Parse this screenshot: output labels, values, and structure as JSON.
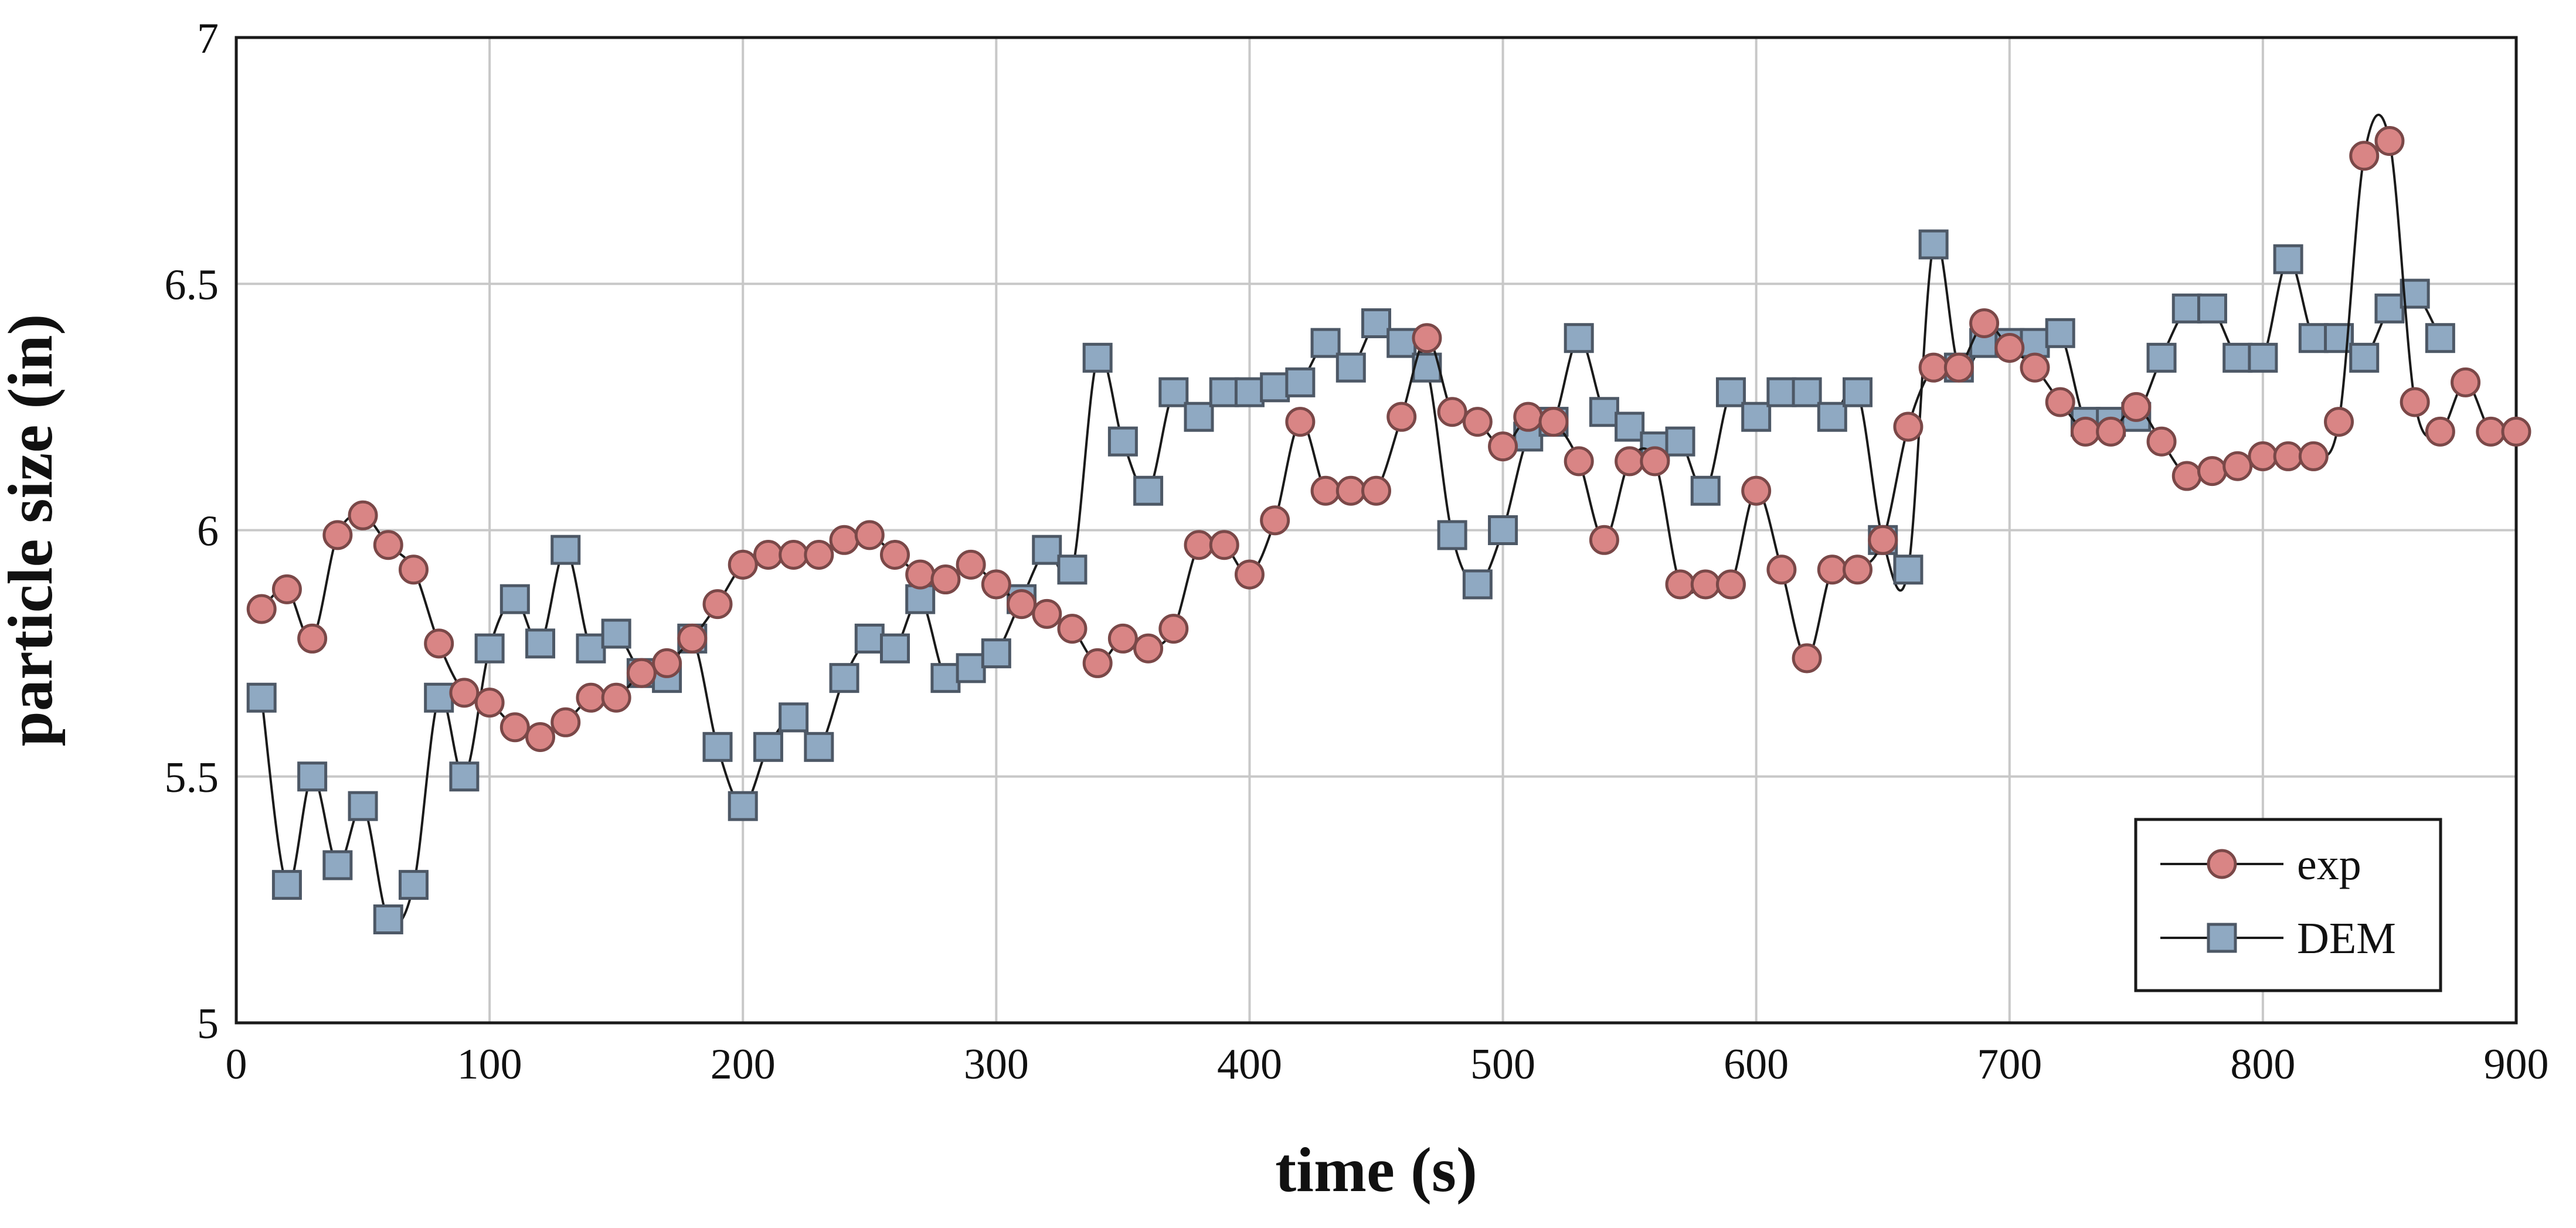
{
  "chart_data": {
    "type": "line",
    "xlabel": "time (s)",
    "ylabel": "particle size (in)",
    "xlim": [
      0,
      900
    ],
    "ylim": [
      5,
      7
    ],
    "xticks": [
      0,
      100,
      200,
      300,
      400,
      500,
      600,
      700,
      800,
      900
    ],
    "xtick_labels": [
      "0",
      "100",
      "200",
      "300",
      "400",
      "500",
      "600",
      "700",
      "800",
      "900"
    ],
    "yticks": [
      5,
      5.5,
      6,
      6.5,
      7
    ],
    "ytick_labels": [
      "5",
      "5.5",
      "6",
      "6.5",
      "7"
    ],
    "grid": true,
    "legend_position": "bottom-right",
    "series": [
      {
        "name": "exp",
        "marker": "circle",
        "color": "#d98585",
        "edge_color": "#7a4848",
        "x": [
          10,
          20,
          30,
          40,
          50,
          60,
          70,
          80,
          90,
          100,
          110,
          120,
          130,
          140,
          150,
          160,
          170,
          180,
          190,
          200,
          210,
          220,
          230,
          240,
          250,
          260,
          270,
          280,
          290,
          300,
          310,
          320,
          330,
          340,
          350,
          360,
          370,
          380,
          390,
          400,
          410,
          420,
          430,
          440,
          450,
          460,
          470,
          480,
          490,
          500,
          510,
          520,
          530,
          540,
          550,
          560,
          570,
          580,
          590,
          600,
          610,
          620,
          630,
          640,
          650,
          660,
          670,
          680,
          690,
          700,
          710,
          720,
          730,
          740,
          750,
          760,
          770,
          780,
          790,
          800,
          810,
          820,
          830,
          840,
          850,
          860,
          870,
          880,
          890,
          900
        ],
        "y": [
          5.84,
          5.88,
          5.78,
          5.99,
          6.03,
          5.97,
          5.92,
          5.77,
          5.67,
          5.65,
          5.6,
          5.58,
          5.61,
          5.66,
          5.66,
          5.71,
          5.73,
          5.78,
          5.85,
          5.93,
          5.95,
          5.95,
          5.95,
          5.98,
          5.99,
          5.95,
          5.91,
          5.9,
          5.93,
          5.89,
          5.85,
          5.83,
          5.8,
          5.73,
          5.78,
          5.76,
          5.8,
          5.97,
          5.97,
          5.91,
          6.02,
          6.22,
          6.08,
          6.08,
          6.08,
          6.23,
          6.39,
          6.24,
          6.22,
          6.17,
          6.23,
          6.22,
          6.14,
          5.98,
          6.14,
          6.14,
          5.89,
          5.89,
          5.89,
          6.08,
          5.92,
          5.74,
          5.92,
          5.92,
          5.98,
          6.21,
          6.33,
          6.33,
          6.42,
          6.37,
          6.33,
          6.26,
          6.2,
          6.2,
          6.25,
          6.18,
          6.11,
          6.12,
          6.13,
          6.15,
          6.15,
          6.15,
          6.22,
          6.76,
          6.79,
          6.26,
          6.2,
          6.3,
          6.2,
          6.2
        ]
      },
      {
        "name": "DEM",
        "marker": "square",
        "color": "#8fa9c2",
        "edge_color": "#4d5866",
        "x": [
          10,
          20,
          30,
          40,
          50,
          60,
          70,
          80,
          90,
          100,
          110,
          120,
          130,
          140,
          150,
          160,
          170,
          180,
          190,
          200,
          210,
          220,
          230,
          240,
          250,
          260,
          270,
          280,
          290,
          300,
          310,
          320,
          330,
          340,
          350,
          360,
          370,
          380,
          390,
          400,
          410,
          420,
          430,
          440,
          450,
          460,
          470,
          480,
          490,
          500,
          510,
          520,
          530,
          540,
          550,
          560,
          570,
          580,
          590,
          600,
          610,
          620,
          630,
          640,
          650,
          660,
          670,
          680,
          690,
          700,
          710,
          720,
          730,
          740,
          750,
          760,
          770,
          780,
          790,
          800,
          810,
          820,
          830,
          840,
          850,
          860,
          870
        ],
        "y": [
          5.66,
          5.28,
          5.5,
          5.32,
          5.44,
          5.21,
          5.28,
          5.66,
          5.5,
          5.76,
          5.86,
          5.77,
          5.96,
          5.76,
          5.79,
          5.71,
          5.7,
          5.78,
          5.56,
          5.44,
          5.56,
          5.62,
          5.56,
          5.7,
          5.78,
          5.76,
          5.86,
          5.7,
          5.72,
          5.75,
          5.86,
          5.96,
          5.92,
          6.35,
          6.18,
          6.08,
          6.28,
          6.23,
          6.28,
          6.28,
          6.29,
          6.3,
          6.38,
          6.33,
          6.42,
          6.38,
          6.33,
          5.99,
          5.89,
          6.0,
          6.19,
          6.22,
          6.39,
          6.24,
          6.21,
          6.17,
          6.18,
          6.08,
          6.28,
          6.23,
          6.28,
          6.28,
          6.23,
          6.28,
          5.98,
          5.92,
          6.58,
          6.33,
          6.38,
          6.38,
          6.38,
          6.4,
          6.22,
          6.22,
          6.23,
          6.35,
          6.45,
          6.45,
          6.35,
          6.35,
          6.55,
          6.39,
          6.39,
          6.35,
          6.45,
          6.48,
          6.39
        ]
      }
    ]
  }
}
